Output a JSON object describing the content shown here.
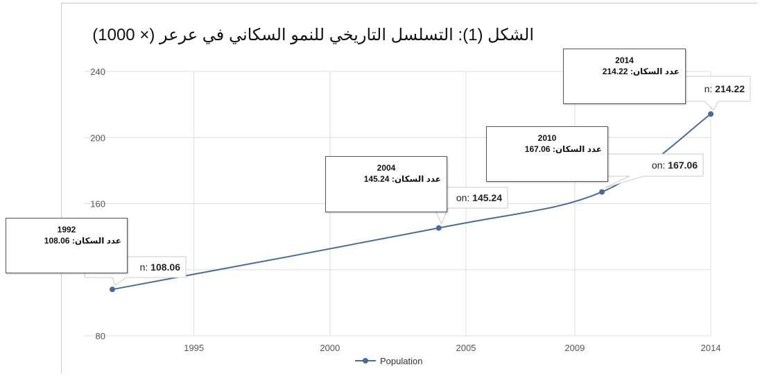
{
  "figure": {
    "title": "الشكل (1): التسلسل التاريخي للنمو السكاني في عرعر (× 1000)"
  },
  "chart_data": {
    "type": "line",
    "title": "الشكل (1): التسلسل التاريخي للنمو السكاني في عرعر (× 1000)",
    "xlabel": "",
    "ylabel": "",
    "x_ticks": [
      "1995",
      "2000",
      "2005",
      "2009",
      "2014"
    ],
    "y_ticks": [
      "80",
      "160",
      "200",
      "240"
    ],
    "xlim": [
      1992,
      2014
    ],
    "ylim": [
      80,
      240
    ],
    "grid": true,
    "legend_position": "bottom",
    "series": [
      {
        "name": "Population",
        "color": "#4a6a9a",
        "points": [
          {
            "x": 1992,
            "y": 108.06
          },
          {
            "x": 2004,
            "y": 145.24
          },
          {
            "x": 2010,
            "y": 167.06
          },
          {
            "x": 2014,
            "y": 214.22
          }
        ]
      }
    ],
    "tooltips": [
      {
        "prefix": "n:",
        "value": "108.06"
      },
      {
        "prefix": "on:",
        "value": "145.24"
      },
      {
        "prefix": "on:",
        "value": "167.06"
      },
      {
        "prefix": "n:",
        "value": "214.22"
      }
    ],
    "annotations": [
      {
        "year": "1992",
        "label": "عدد السكان: 108.06"
      },
      {
        "year": "2004",
        "label": "عدد السكان: 145.24"
      },
      {
        "year": "2010",
        "label": "عدد السكان: 167.06"
      },
      {
        "year": "2014",
        "label": "عدد السكان: 214.22"
      }
    ]
  }
}
